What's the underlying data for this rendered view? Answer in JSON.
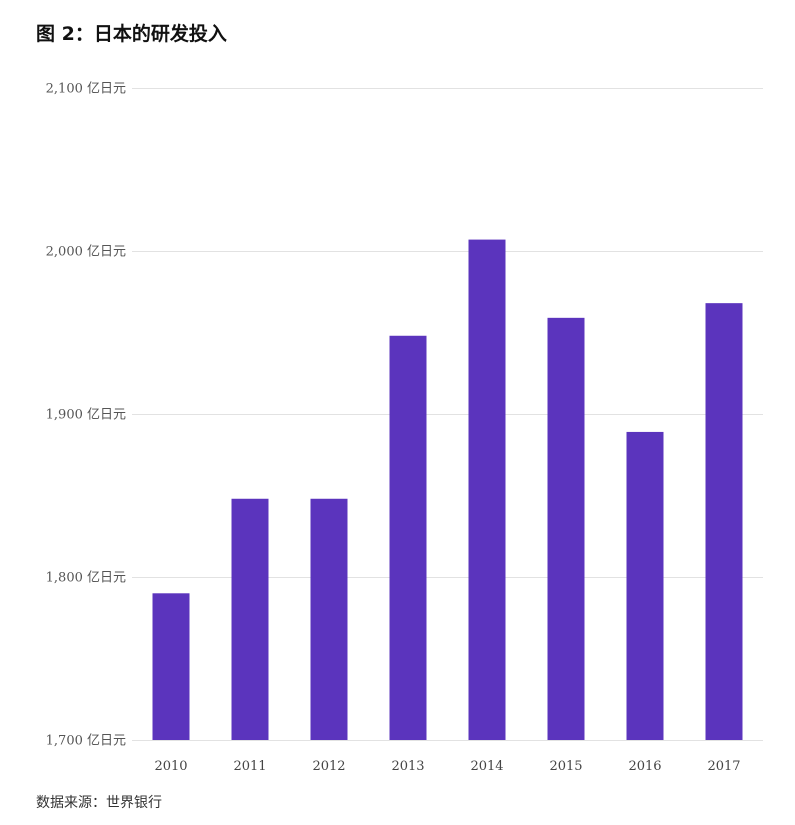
{
  "title": "图 2：日本的研发投入",
  "source": "数据来源：世界银行",
  "chart_data": {
    "type": "bar",
    "title": "图 2：日本的研发投入",
    "xlabel": "",
    "ylabel": "",
    "categories": [
      "2010",
      "2011",
      "2012",
      "2013",
      "2014",
      "2015",
      "2016",
      "2017"
    ],
    "values": [
      1790,
      1848,
      1848,
      1948,
      2007,
      1959,
      1889,
      1968
    ],
    "unit": "亿日元",
    "ylim": [
      1700,
      2100
    ],
    "yticks": [
      1700,
      1800,
      1900,
      2000,
      2100
    ],
    "ytick_labels": [
      "1,700 亿日元",
      "1,800 亿日元",
      "1,900 亿日元",
      "2,000 亿日元",
      "2,100 亿日元"
    ],
    "grid": true,
    "legend": "none",
    "bar_color": "#5b34bd"
  }
}
